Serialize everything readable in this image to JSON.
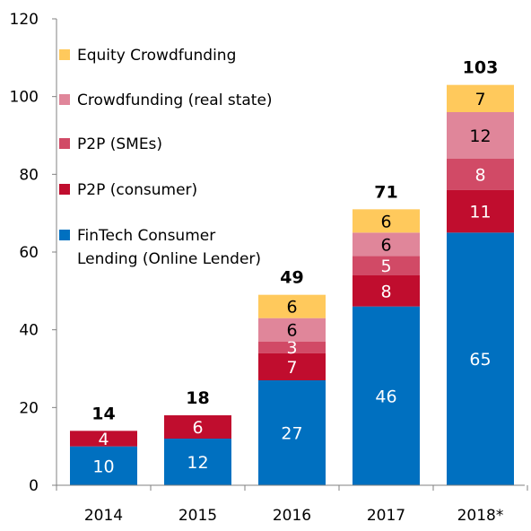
{
  "chart_data": {
    "type": "bar",
    "stacked": true,
    "categories": [
      "2014",
      "2015",
      "2016",
      "2017",
      "2018*"
    ],
    "ylim": [
      0,
      120
    ],
    "yticks": [
      0,
      20,
      40,
      60,
      80,
      100,
      120
    ],
    "grid": false,
    "legend_position": "top-left",
    "series": [
      {
        "name": "FinTech Consumer Lending (Online Lender)",
        "legend_lines": [
          "FinTech Consumer",
          "Lending (Online Lender)"
        ],
        "color": "#0070C0",
        "label_color": "#ffffff",
        "values": [
          10,
          12,
          27,
          46,
          65
        ]
      },
      {
        "name": "P2P (consumer)",
        "legend_lines": [
          "P2P (consumer)"
        ],
        "color": "#C00D2E",
        "label_color": "#ffffff",
        "values": [
          4,
          6,
          7,
          8,
          11
        ]
      },
      {
        "name": "P2P (SMEs)",
        "legend_lines": [
          "P2P (SMEs)"
        ],
        "color": "#D14A66",
        "label_color": "#ffffff",
        "values": [
          null,
          null,
          3,
          5,
          8
        ]
      },
      {
        "name": "Crowdfunding (real state)",
        "legend_lines": [
          "Crowdfunding (real state)"
        ],
        "color": "#E0869A",
        "label_color": "#000000",
        "values": [
          null,
          null,
          6,
          6,
          12
        ]
      },
      {
        "name": "Equity Crowdfunding",
        "legend_lines": [
          "Equity Crowdfunding"
        ],
        "color": "#FFC95C",
        "label_color": "#000000",
        "values": [
          null,
          null,
          6,
          6,
          7
        ]
      }
    ],
    "totals": [
      "14",
      "18",
      "49",
      "71",
      "103"
    ]
  }
}
